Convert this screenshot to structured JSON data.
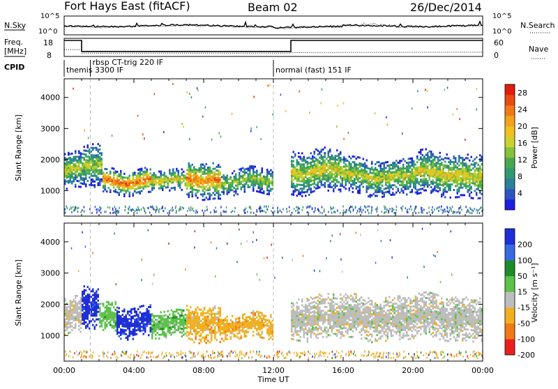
{
  "header": {
    "station": "Fort Hays East (fitACF)",
    "beam": "Beam 02",
    "date": "26/Dec/2014"
  },
  "strips": {
    "nsky_label": "N.Sky",
    "nsky_ticks": [
      "10^5",
      "10^0"
    ],
    "nsearch_label": "N.Search",
    "nsearch_ticks": [
      "10^5",
      "10^0"
    ],
    "freq_label_1": "Freq.",
    "freq_label_2": "[MHz]",
    "freq_ticks": [
      "18",
      "8"
    ],
    "nave_label": "Nave",
    "nave_ticks": [
      "60",
      "0"
    ],
    "cpid_label": "CPID",
    "cpid_segments": [
      {
        "name": "themis 3300 IF",
        "start_h": 0.0,
        "end_h": 1.5
      },
      {
        "name": "rbsp CT-trig 220 IF",
        "start_h": 1.5,
        "end_h": 12.0
      },
      {
        "name": "normal (fast) 151 IF",
        "start_h": 12.0,
        "end_h": 24.0
      }
    ],
    "freq_profile": [
      {
        "t": 0.0,
        "mhz": 18
      },
      {
        "t": 1.0,
        "mhz": 18
      },
      {
        "t": 1.0,
        "mhz": 10.5
      },
      {
        "t": 13.0,
        "mhz": 10.5
      },
      {
        "t": 13.0,
        "mhz": 18
      },
      {
        "t": 24.0,
        "mhz": 18
      }
    ],
    "nave_profile": [
      {
        "t": 0.0,
        "nave": 22
      },
      {
        "t": 1.0,
        "nave": 22
      },
      {
        "t": 1.0,
        "nave": 8
      },
      {
        "t": 13.0,
        "nave": 8
      },
      {
        "t": 13.0,
        "nave": 10
      },
      {
        "t": 24.0,
        "nave": 12
      }
    ]
  },
  "chart_data": [
    {
      "type": "heatmap",
      "parameter": "Power",
      "ylabel": "Slant Range [km]",
      "xlabel": "Time UT",
      "x_ticks": [
        "00:00",
        "04:00",
        "08:00",
        "12:00",
        "16:00",
        "20:00",
        "00:00"
      ],
      "xlim_hours": [
        0,
        24
      ],
      "ylim_km": [
        180,
        4600
      ],
      "y_ticks": [
        "1000",
        "2000",
        "3000",
        "4000"
      ],
      "colorbar": {
        "label": "Power [dB]",
        "ticks": [
          "4",
          "8",
          "12",
          "16",
          "20",
          "24",
          "28"
        ],
        "range": [
          0,
          30
        ],
        "colors": [
          "#1f1fe0",
          "#2c56c0",
          "#2e7f9a",
          "#2f9a74",
          "#4aa84c",
          "#84c23a",
          "#c9d22e",
          "#f0c020",
          "#f2a21c",
          "#f07a18",
          "#ea4a14",
          "#e01e10"
        ]
      },
      "vlines_hours": [
        1.5,
        12.0
      ],
      "regions": [
        {
          "t0": 0.0,
          "t1": 1.0,
          "r_center": 1600,
          "r_half": 600,
          "level": 0.55
        },
        {
          "t0": 1.0,
          "t1": 2.2,
          "r_center": 1750,
          "r_half": 700,
          "level": 0.5
        },
        {
          "t0": 2.2,
          "t1": 5.0,
          "r_center": 1300,
          "r_half": 400,
          "level": 0.85
        },
        {
          "t0": 5.0,
          "t1": 7.0,
          "r_center": 1250,
          "r_half": 350,
          "level": 0.6
        },
        {
          "t0": 7.0,
          "t1": 9.0,
          "r_center": 1350,
          "r_half": 600,
          "level": 0.8
        },
        {
          "t0": 9.0,
          "t1": 12.0,
          "r_center": 1250,
          "r_half": 400,
          "level": 0.5
        },
        {
          "t0": 13.0,
          "t1": 16.0,
          "r_center": 1600,
          "r_half": 700,
          "level": 0.6
        },
        {
          "t0": 16.0,
          "t1": 20.0,
          "r_center": 1450,
          "r_half": 600,
          "level": 0.55
        },
        {
          "t0": 20.0,
          "t1": 24.0,
          "r_center": 1500,
          "r_half": 700,
          "level": 0.6
        }
      ]
    },
    {
      "type": "heatmap",
      "parameter": "Velocity",
      "ylabel": "Slant Range [km]",
      "xlabel": "Time UT",
      "x_ticks": [
        "00:00",
        "04:00",
        "08:00",
        "12:00",
        "16:00",
        "20:00",
        "00:00"
      ],
      "xlim_hours": [
        0,
        24
      ],
      "ylim_km": [
        180,
        4600
      ],
      "y_ticks": [
        "1000",
        "2000",
        "3000",
        "4000"
      ],
      "colorbar": {
        "label": "Velocity [m s⁻¹]",
        "ticks": [
          "200",
          "100",
          "50",
          "15",
          "-15",
          "-50",
          "-100",
          "-200"
        ],
        "colors": [
          "#1f2fd8",
          "#3a6ae0",
          "#1e8a2a",
          "#5cc24a",
          "#bdbdbd",
          "#f0b020",
          "#f07a18",
          "#e82020"
        ]
      },
      "vlines_hours": [
        1.5,
        12.0
      ],
      "regions": [
        {
          "t0": 0.0,
          "t1": 1.0,
          "r_center": 1600,
          "r_half": 600,
          "cls": 4
        },
        {
          "t0": 1.0,
          "t1": 2.0,
          "r_center": 1850,
          "r_half": 700,
          "cls": 0
        },
        {
          "t0": 2.0,
          "t1": 3.0,
          "r_center": 1600,
          "r_half": 500,
          "cls": 3
        },
        {
          "t0": 3.0,
          "t1": 5.0,
          "r_center": 1450,
          "r_half": 500,
          "cls": 0
        },
        {
          "t0": 5.0,
          "t1": 7.0,
          "r_center": 1300,
          "r_half": 450,
          "cls": 3
        },
        {
          "t0": 7.0,
          "t1": 9.0,
          "r_center": 1400,
          "r_half": 600,
          "cls": 5
        },
        {
          "t0": 9.0,
          "t1": 12.0,
          "r_center": 1250,
          "r_half": 400,
          "cls": 5
        },
        {
          "t0": 13.0,
          "t1": 24.0,
          "r_center": 1550,
          "r_half": 700,
          "cls": 4
        }
      ]
    }
  ]
}
